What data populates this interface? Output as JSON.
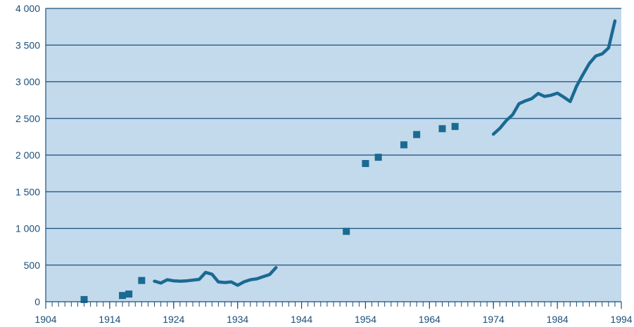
{
  "chart_data": {
    "type": "line",
    "title": "",
    "xlabel": "",
    "ylabel": "",
    "xlim": [
      1904,
      1994
    ],
    "ylim": [
      0,
      4000
    ],
    "x_ticks": [
      1904,
      1914,
      1924,
      1934,
      1944,
      1954,
      1964,
      1974,
      1984,
      1994
    ],
    "x_tick_labels": [
      "1904",
      "1914",
      "1924",
      "1934",
      "1944",
      "1954",
      "1964",
      "1974",
      "1984",
      "1994"
    ],
    "y_ticks": [
      0,
      500,
      1000,
      1500,
      2000,
      2500,
      3000,
      3500,
      4000
    ],
    "y_tick_labels": [
      "0",
      "500",
      "1 000",
      "1 500",
      "2 000",
      "2 500",
      "3 000",
      "3 500",
      "4 000"
    ],
    "grid": "horizontal",
    "legend": "none",
    "colors": {
      "plot_background": "#c3d9ec",
      "series": "#1a6a92",
      "axis": "#1a4f7a",
      "grid": "#1a4f7a"
    },
    "series": [
      {
        "type": "line",
        "points": [
          [
            1921,
            280
          ],
          [
            1922,
            255
          ],
          [
            1923,
            300
          ],
          [
            1924,
            285
          ],
          [
            1925,
            280
          ],
          [
            1926,
            285
          ],
          [
            1927,
            295
          ],
          [
            1928,
            305
          ],
          [
            1929,
            400
          ],
          [
            1930,
            375
          ],
          [
            1931,
            270
          ],
          [
            1932,
            262
          ],
          [
            1933,
            270
          ],
          [
            1934,
            225
          ],
          [
            1935,
            272
          ],
          [
            1936,
            300
          ],
          [
            1937,
            312
          ],
          [
            1938,
            342
          ],
          [
            1939,
            370
          ],
          [
            1940,
            465
          ]
        ]
      },
      {
        "type": "scatter",
        "points": [
          [
            1910,
            30
          ],
          [
            1916,
            85
          ],
          [
            1917,
            105
          ],
          [
            1919,
            290
          ],
          [
            1951,
            960
          ],
          [
            1954,
            1885
          ],
          [
            1956,
            1970
          ],
          [
            1960,
            2140
          ],
          [
            1962,
            2280
          ],
          [
            1966,
            2360
          ],
          [
            1968,
            2390
          ]
        ]
      },
      {
        "type": "line",
        "points": [
          [
            1974,
            2285
          ],
          [
            1975,
            2365
          ],
          [
            1976,
            2470
          ],
          [
            1977,
            2550
          ],
          [
            1978,
            2700
          ],
          [
            1979,
            2740
          ],
          [
            1980,
            2770
          ],
          [
            1981,
            2840
          ],
          [
            1982,
            2800
          ],
          [
            1983,
            2815
          ],
          [
            1984,
            2845
          ],
          [
            1985,
            2790
          ],
          [
            1986,
            2730
          ],
          [
            1987,
            2940
          ],
          [
            1988,
            3100
          ],
          [
            1989,
            3250
          ],
          [
            1990,
            3350
          ],
          [
            1991,
            3380
          ],
          [
            1992,
            3460
          ],
          [
            1993,
            3830
          ]
        ]
      }
    ]
  }
}
